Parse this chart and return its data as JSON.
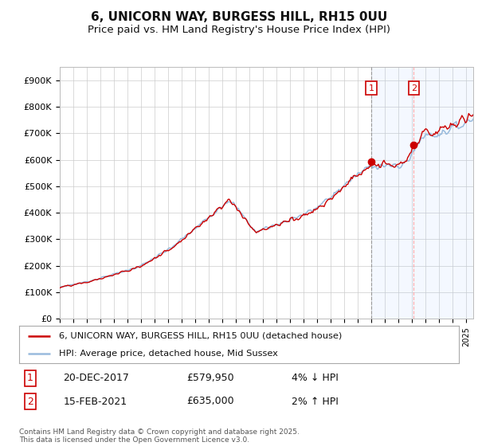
{
  "title": "6, UNICORN WAY, BURGESS HILL, RH15 0UU",
  "subtitle": "Price paid vs. HM Land Registry's House Price Index (HPI)",
  "ylim": [
    0,
    950000
  ],
  "yticks": [
    0,
    100000,
    200000,
    300000,
    400000,
    500000,
    600000,
    700000,
    800000,
    900000
  ],
  "ytick_labels": [
    "£0",
    "£100K",
    "£200K",
    "£300K",
    "£400K",
    "£500K",
    "£600K",
    "£700K",
    "£800K",
    "£900K"
  ],
  "hpi_color": "#99bbdd",
  "price_color": "#cc0000",
  "sale1_date": 2017.97,
  "sale1_price": 579950,
  "sale1_label": "1",
  "sale2_date": 2021.12,
  "sale2_price": 635000,
  "sale2_label": "2",
  "legend_line1": "6, UNICORN WAY, BURGESS HILL, RH15 0UU (detached house)",
  "legend_line2": "HPI: Average price, detached house, Mid Sussex",
  "table_row1": [
    "1",
    "20-DEC-2017",
    "£579,950",
    "4% ↓ HPI"
  ],
  "table_row2": [
    "2",
    "15-FEB-2021",
    "£635,000",
    "2% ↑ HPI"
  ],
  "footnote": "Contains HM Land Registry data © Crown copyright and database right 2025.\nThis data is licensed under the Open Government Licence v3.0.",
  "background_color": "#ffffff",
  "grid_color": "#cccccc",
  "title_fontsize": 11,
  "subtitle_fontsize": 9.5,
  "tick_fontsize": 8
}
